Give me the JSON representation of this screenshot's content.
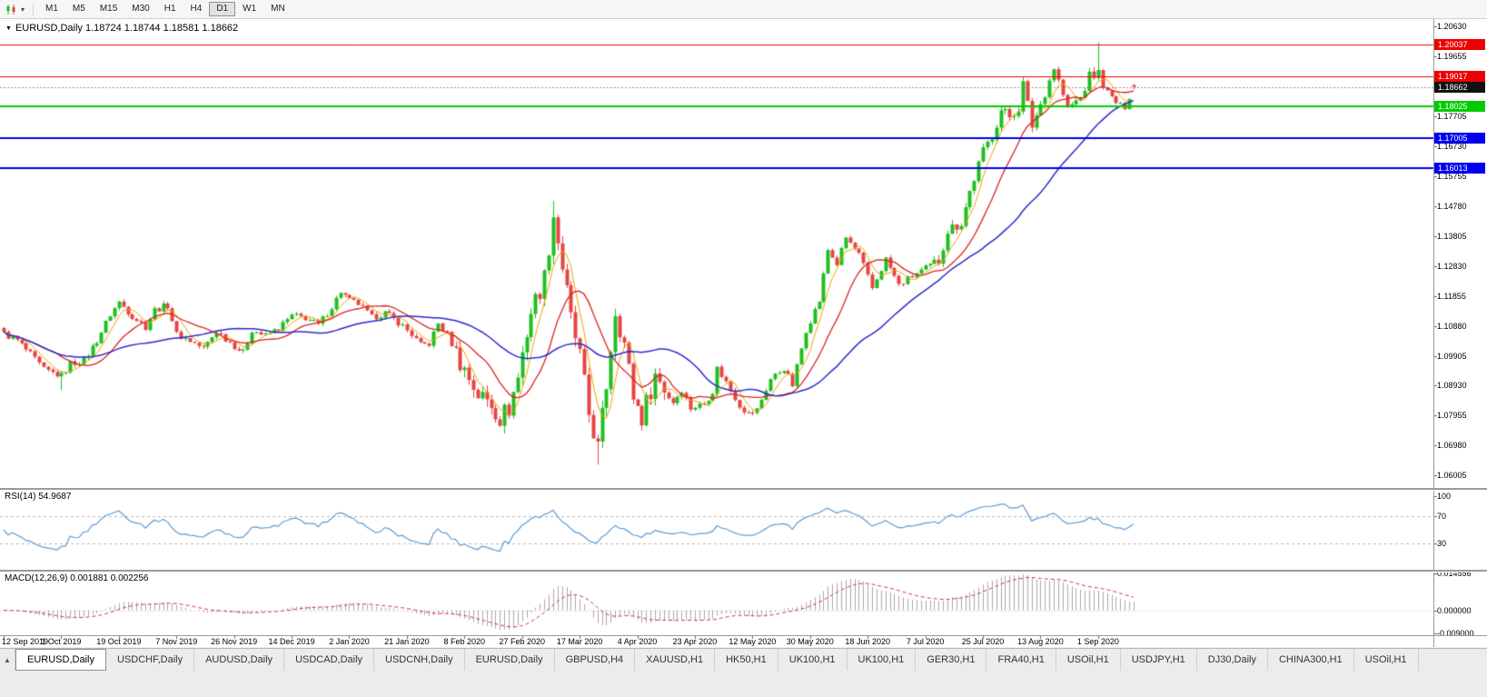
{
  "icons": {
    "caret_down": "▾",
    "triangle_down": "▼",
    "tab_list": "▲"
  },
  "toolbar": {
    "timeframes": [
      "M1",
      "M5",
      "M15",
      "M30",
      "H1",
      "H4",
      "D1",
      "W1",
      "MN"
    ],
    "active_timeframe": "D1"
  },
  "chart": {
    "header": "EURUSD,Daily 1.18724 1.18744 1.18581 1.18662",
    "symbol": "EURUSD",
    "period": "Daily"
  },
  "price_axis": {
    "ticks": [
      "1.20630",
      "1.19655",
      "1.18680",
      "1.17705",
      "1.16730",
      "1.15755",
      "1.14780",
      "1.13805",
      "1.12830",
      "1.11855",
      "1.10880",
      "1.09905",
      "1.08930",
      "1.07955",
      "1.06980",
      "1.06005"
    ],
    "top": 1.209,
    "bottom": 1.056
  },
  "levels": [
    {
      "value": "1.20037",
      "color": "#ee0000",
      "width": 1
    },
    {
      "value": "1.19017",
      "color": "#ee0000",
      "width": 1
    },
    {
      "value": "1.18025",
      "color": "#00cc00",
      "width": 2
    },
    {
      "value": "1.17005",
      "color": "#0000ee",
      "width": 2
    },
    {
      "value": "1.16013",
      "color": "#0000ee",
      "width": 2
    }
  ],
  "current_price": {
    "text": "1.18662",
    "value": 1.18662,
    "box_color": "#111111"
  },
  "rsi": {
    "label": "RSI(14) 54.9687",
    "value": "54.9687",
    "ticks": [
      "100",
      "70",
      "30"
    ],
    "levels": [
      70,
      30
    ],
    "color": "#5b9bd5"
  },
  "macd": {
    "label": "MACD(12,26,9) 0.001881 0.002256",
    "main_value": "0.001881",
    "signal_value": "0.002256",
    "ticks": [
      "0.014556",
      "0.000000",
      "-0.009000"
    ],
    "histogram_color": "#a8a8a8",
    "signal_color": "#d23434"
  },
  "date_axis": {
    "labels": [
      "12 Sep 2019",
      "1 Oct 2019",
      "19 Oct 2019",
      "7 Nov 2019",
      "26 Nov 2019",
      "14 Dec 2019",
      "2 Jan 2020",
      "21 Jan 2020",
      "8 Feb 2020",
      "27 Feb 2020",
      "17 Mar 2020",
      "4 Apr 2020",
      "23 Apr 2020",
      "12 May 2020",
      "30 May 2020",
      "18 Jun 2020",
      "7 Jul 2020",
      "25 Jul 2020",
      "13 Aug 2020",
      "1 Sep 2020"
    ],
    "bars_per_label": 13
  },
  "bottom_tabs": {
    "active_index": 0,
    "tabs": [
      "EURUSD,Daily",
      "USDCHF,Daily",
      "AUDUSD,Daily",
      "USDCAD,Daily",
      "USDCNH,Daily",
      "EURUSD,Daily",
      "GBPUSD,H4",
      "XAUUSD,H1",
      "HK50,H1",
      "UK100,H1",
      "UK100,H1",
      "GER30,H1",
      "FRA40,H1",
      "USOil,H1",
      "USDJPY,H1",
      "DJ30,Daily",
      "CHINA300,H1",
      "USOil,H1"
    ]
  },
  "chart_data": {
    "type": "candlestick",
    "symbol": "EURUSD",
    "timeframe": "Daily",
    "bars": 256,
    "up_color": "#1fbf1f",
    "down_color": "#e64545",
    "last_bar": {
      "open": 1.18724,
      "high": 1.18744,
      "low": 1.18581,
      "close": 1.18662
    },
    "keyframes": [
      [
        0,
        1.1062
      ],
      [
        3,
        1.104
      ],
      [
        6,
        1.0995
      ],
      [
        9,
        1.0945
      ],
      [
        13,
        1.0925
      ],
      [
        15,
        1.0965
      ],
      [
        18,
        1.0975
      ],
      [
        21,
        1.104
      ],
      [
        24,
        1.1125
      ],
      [
        26,
        1.1165
      ],
      [
        29,
        1.112
      ],
      [
        32,
        1.1085
      ],
      [
        34,
        1.114
      ],
      [
        37,
        1.1155
      ],
      [
        39,
        1.106
      ],
      [
        42,
        1.104
      ],
      [
        45,
        1.1015
      ],
      [
        48,
        1.107
      ],
      [
        51,
        1.1035
      ],
      [
        54,
        1.1
      ],
      [
        56,
        1.1075
      ],
      [
        59,
        1.1055
      ],
      [
        62,
        1.108
      ],
      [
        65,
        1.112
      ],
      [
        68,
        1.1115
      ],
      [
        71,
        1.109
      ],
      [
        74,
        1.115
      ],
      [
        76,
        1.12
      ],
      [
        78,
        1.117
      ],
      [
        80,
        1.116
      ],
      [
        83,
        1.1115
      ],
      [
        86,
        1.113
      ],
      [
        89,
        1.11
      ],
      [
        92,
        1.106
      ],
      [
        94,
        1.1025
      ],
      [
        96,
        1.103
      ],
      [
        98,
        1.1095
      ],
      [
        100,
        1.106
      ],
      [
        102,
        1.1
      ],
      [
        104,
        1.0945
      ],
      [
        107,
        1.0865
      ],
      [
        110,
        1.0835
      ],
      [
        112,
        1.079
      ],
      [
        114,
        1.082
      ],
      [
        116,
        1.092
      ],
      [
        117,
        1.1
      ],
      [
        119,
        1.1135
      ],
      [
        122,
        1.1245
      ],
      [
        124,
        1.145
      ],
      [
        126,
        1.128
      ],
      [
        128,
        1.111
      ],
      [
        130,
        1.099
      ],
      [
        132,
        1.08
      ],
      [
        134,
        1.069
      ],
      [
        136,
        1.0895
      ],
      [
        138,
        1.114
      ],
      [
        140,
        1.103
      ],
      [
        142,
        1.086
      ],
      [
        144,
        1.079
      ],
      [
        147,
        1.093
      ],
      [
        149,
        1.0885
      ],
      [
        151,
        1.084
      ],
      [
        153,
        1.088
      ],
      [
        155,
        1.082
      ],
      [
        158,
        1.0835
      ],
      [
        160,
        1.0875
      ],
      [
        161,
        1.095
      ],
      [
        163,
        1.0905
      ],
      [
        166,
        1.083
      ],
      [
        168,
        1.08
      ],
      [
        170,
        1.0815
      ],
      [
        173,
        1.0915
      ],
      [
        176,
        1.095
      ],
      [
        178,
        1.0895
      ],
      [
        181,
        1.1075
      ],
      [
        184,
        1.117
      ],
      [
        186,
        1.1335
      ],
      [
        188,
        1.129
      ],
      [
        190,
        1.1375
      ],
      [
        193,
        1.132
      ],
      [
        196,
        1.121
      ],
      [
        199,
        1.1305
      ],
      [
        202,
        1.122
      ],
      [
        205,
        1.125
      ],
      [
        208,
        1.1275
      ],
      [
        211,
        1.13
      ],
      [
        213,
        1.14
      ],
      [
        216,
        1.1425
      ],
      [
        218,
        1.1525
      ],
      [
        221,
        1.1655
      ],
      [
        223,
        1.171
      ],
      [
        225,
        1.179
      ],
      [
        227,
        1.177
      ],
      [
        229,
        1.18
      ],
      [
        230,
        1.1875
      ],
      [
        232,
        1.174
      ],
      [
        234,
        1.181
      ],
      [
        237,
        1.193
      ],
      [
        240,
        1.1795
      ],
      [
        243,
        1.183
      ],
      [
        245,
        1.19
      ],
      [
        247,
        1.191
      ],
      [
        249,
        1.185
      ],
      [
        251,
        1.1815
      ],
      [
        253,
        1.18
      ],
      [
        255,
        1.18662
      ]
    ],
    "wick_overrides": [
      {
        "bar": 13,
        "low": 1.0879
      },
      {
        "bar": 124,
        "high": 1.1495
      },
      {
        "bar": 134,
        "low": 1.0636
      },
      {
        "bar": 247,
        "high": 1.2011
      }
    ],
    "overlays": [
      {
        "type": "sma",
        "period": 5,
        "color": "#f0a000",
        "width": 1
      },
      {
        "type": "sma",
        "period": 13,
        "color": "#dd2222",
        "width": 1.3
      },
      {
        "type": "sma",
        "period": 34,
        "color": "#2b2bcc",
        "width": 1.5
      }
    ],
    "indicators": [
      {
        "name": "RSI",
        "period": 14,
        "current": 54.9687
      },
      {
        "name": "MACD",
        "fast": 12,
        "slow": 26,
        "signal": 9,
        "current_main": 0.001881,
        "current_signal": 0.002256
      }
    ]
  }
}
